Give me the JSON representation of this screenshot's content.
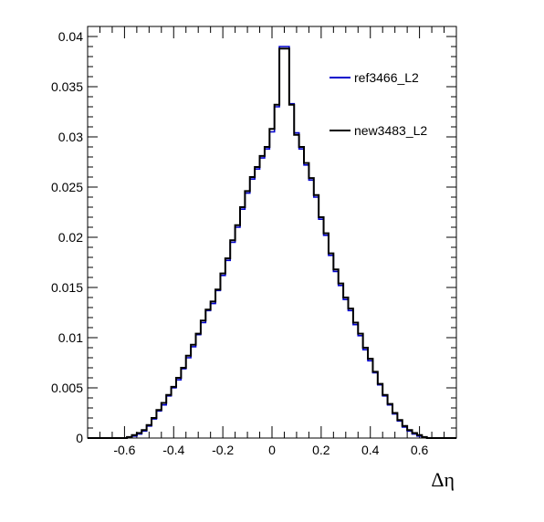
{
  "chart_data": {
    "type": "histogram",
    "title": "",
    "xlabel": "Δη",
    "ylabel": "",
    "xlim": [
      -0.75,
      0.75
    ],
    "ylim": [
      0,
      0.041
    ],
    "grid": false,
    "legend_position": "top-right",
    "xticks": [
      -0.6,
      -0.4,
      -0.2,
      0,
      0.2,
      0.4,
      0.6
    ],
    "xtick_labels": [
      "-0.6",
      "-0.4",
      "-0.2",
      "0",
      "0.2",
      "0.4",
      "0.6"
    ],
    "yticks": [
      0,
      0.005,
      0.01,
      0.015,
      0.02,
      0.025,
      0.03,
      0.035,
      0.04
    ],
    "ytick_labels": [
      "0",
      "0.005",
      "0.01",
      "0.015",
      "0.02",
      "0.025",
      "0.03",
      "0.035",
      "0.04"
    ],
    "bin_edges_start": -0.75,
    "bin_width": 0.02,
    "series": [
      {
        "name": "ref3466_L2",
        "color": "#0000cc",
        "values": [
          0.0,
          0.0,
          0.0,
          0.0,
          0.0,
          0.0,
          0.0,
          0.0,
          0.0001,
          0.0002,
          0.0004,
          0.0007,
          0.0012,
          0.0019,
          0.0027,
          0.0033,
          0.0042,
          0.005,
          0.0058,
          0.0069,
          0.008,
          0.0091,
          0.0103,
          0.0115,
          0.0127,
          0.0134,
          0.0147,
          0.0162,
          0.0177,
          0.0195,
          0.021,
          0.0228,
          0.0244,
          0.0258,
          0.0268,
          0.0279,
          0.0288,
          0.0305,
          0.033,
          0.039,
          0.039,
          0.0333,
          0.0304,
          0.0288,
          0.0272,
          0.0257,
          0.024,
          0.0218,
          0.0202,
          0.0182,
          0.0166,
          0.0152,
          0.0138,
          0.0127,
          0.0113,
          0.0102,
          0.0088,
          0.0077,
          0.0065,
          0.0053,
          0.0042,
          0.0033,
          0.0024,
          0.0017,
          0.0011,
          0.0007,
          0.0004,
          0.0002,
          0.0001,
          0.0,
          0.0,
          0.0,
          0.0,
          0.0,
          0.0
        ]
      },
      {
        "name": "new3483_L2",
        "color": "#000000",
        "values": [
          0.0,
          0.0,
          0.0,
          0.0,
          0.0,
          0.0,
          0.0,
          0.0,
          0.0001,
          0.0003,
          0.0005,
          0.0008,
          0.0013,
          0.002,
          0.0028,
          0.0035,
          0.0043,
          0.0051,
          0.006,
          0.007,
          0.0082,
          0.0093,
          0.0104,
          0.0117,
          0.0128,
          0.0136,
          0.0148,
          0.0164,
          0.0179,
          0.0197,
          0.0212,
          0.023,
          0.0246,
          0.026,
          0.027,
          0.0281,
          0.029,
          0.0308,
          0.0332,
          0.0388,
          0.0388,
          0.0332,
          0.0302,
          0.029,
          0.0274,
          0.0259,
          0.0242,
          0.022,
          0.0204,
          0.0184,
          0.0168,
          0.0154,
          0.014,
          0.0129,
          0.0115,
          0.0104,
          0.009,
          0.0079,
          0.0066,
          0.0054,
          0.0043,
          0.0034,
          0.0025,
          0.0018,
          0.0012,
          0.0008,
          0.0005,
          0.0003,
          0.0001,
          0.0,
          0.0,
          0.0,
          0.0,
          0.0,
          0.0
        ]
      }
    ]
  }
}
